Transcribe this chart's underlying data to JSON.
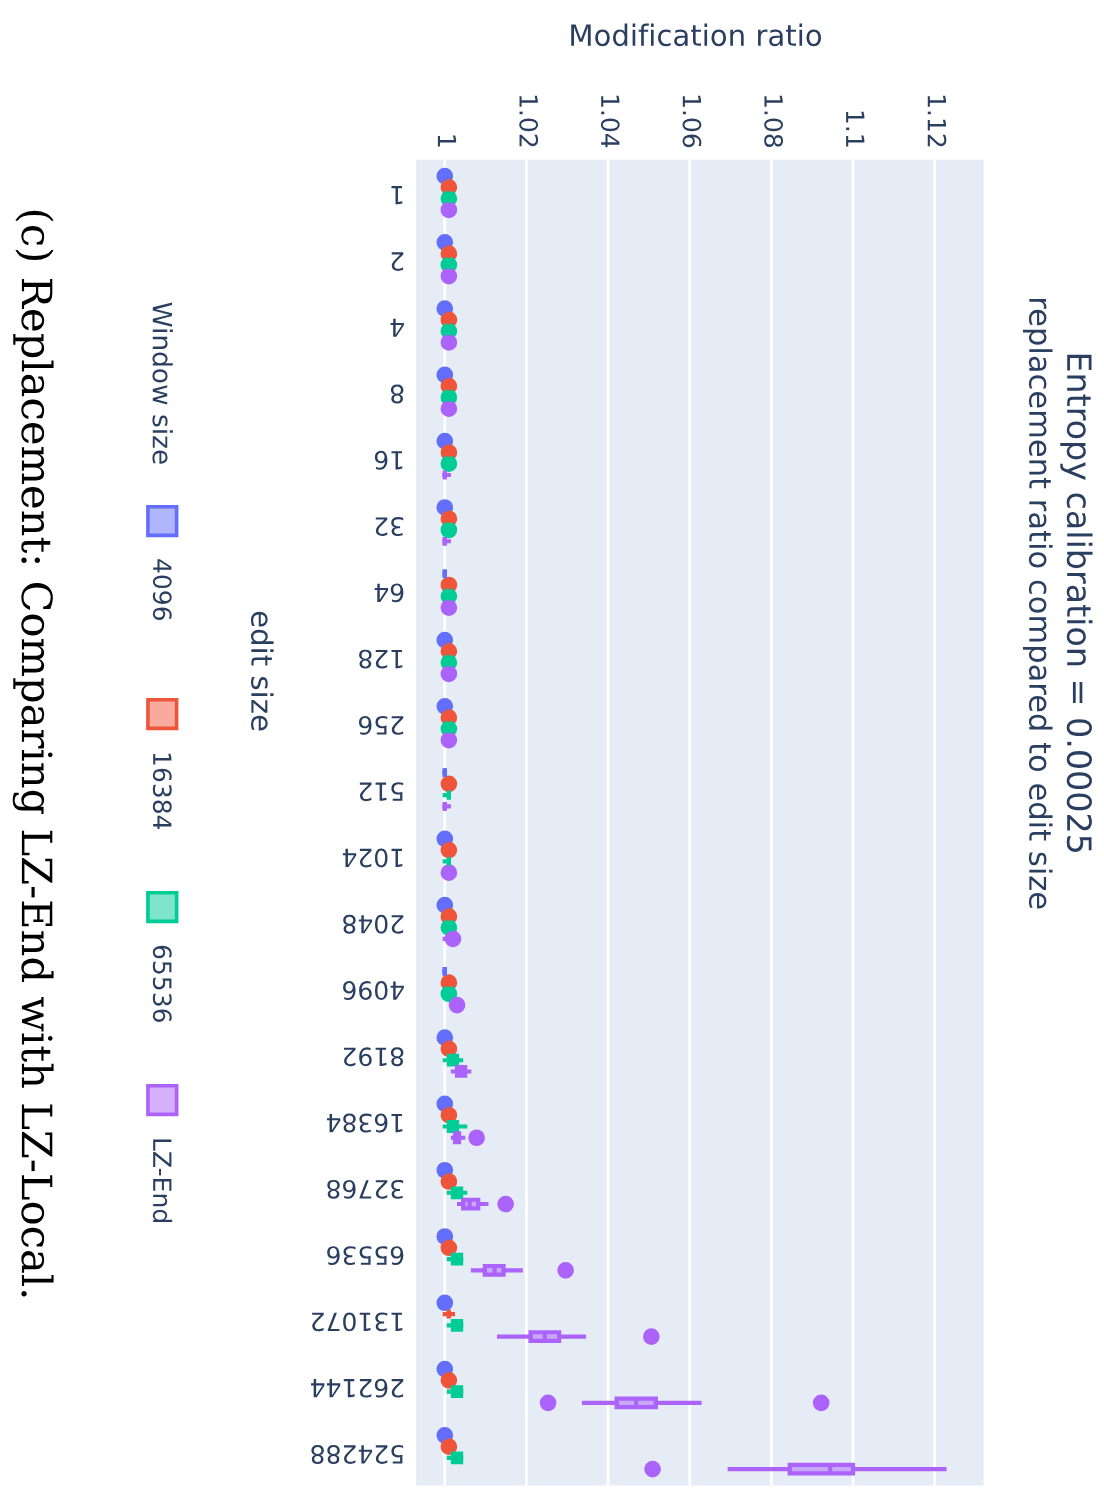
{
  "chart_data": {
    "type": "box",
    "orientation": "horizontal",
    "title": "Entropy calibration = 0.00025",
    "subtitle": "replacement ratio compared to edit size",
    "ylabel": "edit size",
    "xlabel": "Modification ratio",
    "legend_title": "Window size",
    "annotations": [
      "(c) Replacement: Comparing LZ-End with LZ-Local."
    ],
    "categories": [
      "1",
      "2",
      "4",
      "8",
      "16",
      "32",
      "64",
      "128",
      "256",
      "512",
      "1024",
      "2048",
      "4096",
      "8192",
      "16384",
      "32768",
      "65536",
      "131072",
      "262144",
      "524288"
    ],
    "xlim": [
      0.993,
      1.132
    ],
    "xticks": [
      1,
      1.02,
      1.04,
      1.06,
      1.08,
      1.1,
      1.12
    ],
    "grid": "x",
    "legend": "left",
    "series": [
      {
        "name": "4096",
        "color": "#636efa",
        "boxes": [
          {
            "low": 1,
            "q1": 1,
            "median": 1,
            "q3": 1,
            "high": 1,
            "outliers": [
              1
            ]
          },
          {
            "low": 1,
            "q1": 1,
            "median": 1,
            "q3": 1,
            "high": 1,
            "outliers": [
              1
            ]
          },
          {
            "low": 1,
            "q1": 1,
            "median": 1,
            "q3": 1,
            "high": 1,
            "outliers": [
              1
            ]
          },
          {
            "low": 1,
            "q1": 1,
            "median": 1,
            "q3": 1,
            "high": 1,
            "outliers": [
              1
            ]
          },
          {
            "low": 1,
            "q1": 1,
            "median": 1,
            "q3": 1,
            "high": 1,
            "outliers": [
              1
            ]
          },
          {
            "low": 1,
            "q1": 1,
            "median": 1,
            "q3": 1,
            "high": 1,
            "outliers": [
              1
            ]
          },
          {
            "low": 1,
            "q1": 1,
            "median": 1,
            "q3": 1,
            "high": 1
          },
          {
            "low": 1,
            "q1": 1,
            "median": 1,
            "q3": 1,
            "high": 1,
            "outliers": [
              1
            ]
          },
          {
            "low": 1,
            "q1": 1,
            "median": 1,
            "q3": 1,
            "high": 1,
            "outliers": [
              1
            ]
          },
          {
            "low": 1,
            "q1": 1,
            "median": 1,
            "q3": 1,
            "high": 1
          },
          {
            "low": 1,
            "q1": 1,
            "median": 1,
            "q3": 1,
            "high": 1,
            "outliers": [
              1
            ]
          },
          {
            "low": 1,
            "q1": 1,
            "median": 1,
            "q3": 1,
            "high": 1,
            "outliers": [
              1
            ]
          },
          {
            "low": 1,
            "q1": 1,
            "median": 1,
            "q3": 1,
            "high": 1
          },
          {
            "low": 1,
            "q1": 1,
            "median": 1,
            "q3": 1,
            "high": 1,
            "outliers": [
              1
            ]
          },
          {
            "low": 1,
            "q1": 1,
            "median": 1,
            "q3": 1,
            "high": 1,
            "outliers": [
              1
            ]
          },
          {
            "low": 1,
            "q1": 1,
            "median": 1,
            "q3": 1,
            "high": 1,
            "outliers": [
              1
            ]
          },
          {
            "low": 1,
            "q1": 1,
            "median": 1,
            "q3": 1,
            "high": 1,
            "outliers": [
              1
            ]
          },
          {
            "low": 1,
            "q1": 1,
            "median": 1,
            "q3": 1,
            "high": 1,
            "outliers": [
              1
            ]
          },
          {
            "low": 1,
            "q1": 1,
            "median": 1,
            "q3": 1,
            "high": 1,
            "outliers": [
              1
            ]
          },
          {
            "low": 1,
            "q1": 1,
            "median": 1,
            "q3": 1,
            "high": 1,
            "outliers": [
              1
            ]
          }
        ]
      },
      {
        "name": "16384",
        "color": "#ef553b",
        "boxes": [
          {
            "low": 1,
            "q1": 1.001,
            "median": 1.001,
            "q3": 1.001,
            "high": 1.001,
            "outliers": [
              1.001
            ]
          },
          {
            "low": 1,
            "q1": 1.001,
            "median": 1.001,
            "q3": 1.001,
            "high": 1.001,
            "outliers": [
              1.001
            ]
          },
          {
            "low": 1,
            "q1": 1.001,
            "median": 1.001,
            "q3": 1.001,
            "high": 1.001,
            "outliers": [
              1.001
            ]
          },
          {
            "low": 1,
            "q1": 1.001,
            "median": 1.001,
            "q3": 1.001,
            "high": 1.001,
            "outliers": [
              1.001
            ]
          },
          {
            "low": 1,
            "q1": 1.001,
            "median": 1.001,
            "q3": 1.001,
            "high": 1.001,
            "outliers": [
              1.001
            ]
          },
          {
            "low": 1,
            "q1": 1.001,
            "median": 1.001,
            "q3": 1.001,
            "high": 1.001,
            "outliers": [
              1.001
            ]
          },
          {
            "low": 1,
            "q1": 1.001,
            "median": 1.001,
            "q3": 1.001,
            "high": 1.001,
            "outliers": [
              1.001
            ]
          },
          {
            "low": 1,
            "q1": 1.001,
            "median": 1.001,
            "q3": 1.001,
            "high": 1.001,
            "outliers": [
              1.001
            ]
          },
          {
            "low": 1,
            "q1": 1.001,
            "median": 1.001,
            "q3": 1.001,
            "high": 1.001,
            "outliers": [
              1.001
            ]
          },
          {
            "low": 1,
            "q1": 1.001,
            "median": 1.001,
            "q3": 1.001,
            "high": 1.001,
            "outliers": [
              1.001
            ]
          },
          {
            "low": 1,
            "q1": 1.001,
            "median": 1.001,
            "q3": 1.001,
            "high": 1.001,
            "outliers": [
              1.001
            ]
          },
          {
            "low": 1,
            "q1": 1.001,
            "median": 1.001,
            "q3": 1.001,
            "high": 1.001,
            "outliers": [
              1.001
            ]
          },
          {
            "low": 1,
            "q1": 1.001,
            "median": 1.001,
            "q3": 1.001,
            "high": 1.002,
            "outliers": [
              1.001
            ]
          },
          {
            "low": 1,
            "q1": 1.001,
            "median": 1.001,
            "q3": 1.001,
            "high": 1.002,
            "outliers": [
              1.001
            ]
          },
          {
            "low": 1,
            "q1": 1.001,
            "median": 1.001,
            "q3": 1.001,
            "high": 1.002,
            "outliers": [
              1.001
            ]
          },
          {
            "low": 1,
            "q1": 1.001,
            "median": 1.001,
            "q3": 1.001,
            "high": 1.002,
            "outliers": [
              1.001
            ]
          },
          {
            "low": 1,
            "q1": 1.001,
            "median": 1.001,
            "q3": 1.001,
            "high": 1.002,
            "outliers": [
              1.001
            ]
          },
          {
            "low": 1,
            "q1": 1.001,
            "median": 1.001,
            "q3": 1.001,
            "high": 1.002
          },
          {
            "low": 1,
            "q1": 1.001,
            "median": 1.001,
            "q3": 1.001,
            "high": 1.002,
            "outliers": [
              1.001
            ]
          },
          {
            "low": 1,
            "q1": 1.001,
            "median": 1.001,
            "q3": 1.001,
            "high": 1.002,
            "outliers": [
              1.001
            ]
          }
        ]
      },
      {
        "name": "65536",
        "color": "#00cc96",
        "boxes": [
          {
            "low": 1,
            "q1": 1.001,
            "median": 1.001,
            "q3": 1.001,
            "high": 1.001,
            "outliers": [
              1.001
            ]
          },
          {
            "low": 1,
            "q1": 1.001,
            "median": 1.001,
            "q3": 1.001,
            "high": 1.001,
            "outliers": [
              1.001
            ]
          },
          {
            "low": 1,
            "q1": 1.001,
            "median": 1.001,
            "q3": 1.001,
            "high": 1.001,
            "outliers": [
              1.001
            ]
          },
          {
            "low": 1,
            "q1": 1.001,
            "median": 1.001,
            "q3": 1.001,
            "high": 1.001,
            "outliers": [
              1.001
            ]
          },
          {
            "low": 1,
            "q1": 1.001,
            "median": 1.001,
            "q3": 1.001,
            "high": 1.001,
            "outliers": [
              1.001
            ]
          },
          {
            "low": 1,
            "q1": 1.001,
            "median": 1.001,
            "q3": 1.001,
            "high": 1.001,
            "outliers": [
              1.001
            ]
          },
          {
            "low": 1,
            "q1": 1.001,
            "median": 1.001,
            "q3": 1.001,
            "high": 1.001,
            "outliers": [
              1.001
            ]
          },
          {
            "low": 1,
            "q1": 1.001,
            "median": 1.001,
            "q3": 1.001,
            "high": 1.001,
            "outliers": [
              1.001
            ]
          },
          {
            "low": 1,
            "q1": 1.001,
            "median": 1.001,
            "q3": 1.001,
            "high": 1.001,
            "outliers": [
              1.001
            ]
          },
          {
            "low": 1,
            "q1": 1.001,
            "median": 1.001,
            "q3": 1.001,
            "high": 1.001
          },
          {
            "low": 1,
            "q1": 1.001,
            "median": 1.001,
            "q3": 1.001,
            "high": 1.001
          },
          {
            "low": 1,
            "q1": 1.001,
            "median": 1.001,
            "q3": 1.001,
            "high": 1.001,
            "outliers": [
              1.001
            ]
          },
          {
            "low": 1,
            "q1": 1.001,
            "median": 1.001,
            "q3": 1.002,
            "high": 1.002,
            "outliers": [
              1.001
            ]
          },
          {
            "low": 1,
            "q1": 1.001,
            "median": 1.002,
            "q3": 1.003,
            "high": 1.004
          },
          {
            "low": 1,
            "q1": 1.001,
            "median": 1.002,
            "q3": 1.003,
            "high": 1.005
          },
          {
            "low": 1.001,
            "q1": 1.002,
            "median": 1.003,
            "q3": 1.004,
            "high": 1.005
          },
          {
            "low": 1.001,
            "q1": 1.002,
            "median": 1.003,
            "q3": 1.004,
            "high": 1.004
          },
          {
            "low": 1.001,
            "q1": 1.002,
            "median": 1.003,
            "q3": 1.004,
            "high": 1.004
          },
          {
            "low": 1.001,
            "q1": 1.002,
            "median": 1.003,
            "q3": 1.004,
            "high": 1.004
          },
          {
            "low": 1.001,
            "q1": 1.002,
            "median": 1.003,
            "q3": 1.004,
            "high": 1.004
          }
        ]
      },
      {
        "name": "LZ-End",
        "color": "#ab63fa",
        "boxes": [
          {
            "low": 1,
            "q1": 1.001,
            "median": 1.001,
            "q3": 1.001,
            "high": 1.001,
            "outliers": [
              1.001
            ]
          },
          {
            "low": 1,
            "q1": 1.001,
            "median": 1.001,
            "q3": 1.001,
            "high": 1.001,
            "outliers": [
              1.001
            ]
          },
          {
            "low": 1,
            "q1": 1.001,
            "median": 1.001,
            "q3": 1.001,
            "high": 1.001,
            "outliers": [
              1.001
            ]
          },
          {
            "low": 1,
            "q1": 1.001,
            "median": 1.001,
            "q3": 1.001,
            "high": 1.001,
            "outliers": [
              1.001
            ]
          },
          {
            "low": 1,
            "q1": 1,
            "median": 1,
            "q3": 1,
            "high": 1.001
          },
          {
            "low": 1,
            "q1": 1,
            "median": 1,
            "q3": 1,
            "high": 1.001
          },
          {
            "low": 1,
            "q1": 1.001,
            "median": 1.001,
            "q3": 1.001,
            "high": 1.001,
            "outliers": [
              1.001
            ]
          },
          {
            "low": 1,
            "q1": 1.001,
            "median": 1.001,
            "q3": 1.001,
            "high": 1.001,
            "outliers": [
              1.001
            ]
          },
          {
            "low": 1,
            "q1": 1.001,
            "median": 1.001,
            "q3": 1.001,
            "high": 1.001,
            "outliers": [
              1.001
            ]
          },
          {
            "low": 1,
            "q1": 1,
            "median": 1,
            "q3": 1,
            "high": 1.001
          },
          {
            "low": 1,
            "q1": 1.001,
            "median": 1.001,
            "q3": 1.001,
            "high": 1.001,
            "outliers": [
              1.001
            ]
          },
          {
            "low": 1,
            "q1": 1.002,
            "median": 1.002,
            "q3": 1.002,
            "high": 1.002,
            "outliers": [
              1.002
            ]
          },
          {
            "low": 1.002,
            "q1": 1.003,
            "median": 1.003,
            "q3": 1.003,
            "high": 1.004,
            "outliers": [
              1.003
            ]
          },
          {
            "low": 1.002,
            "q1": 1.003,
            "median": 1.004,
            "q3": 1.005,
            "high": 1.006
          },
          {
            "low": 1.002,
            "q1": 1.0025,
            "median": 1.003,
            "q3": 1.0035,
            "high": 1.0045,
            "outliers": [
              1.0078
            ]
          },
          {
            "low": 1.0035,
            "q1": 1.0045,
            "median": 1.0061,
            "q3": 1.0082,
            "high": 1.0102,
            "outliers": [
              1.0149
            ]
          },
          {
            "low": 1.0069,
            "q1": 1.0098,
            "median": 1.0122,
            "q3": 1.0144,
            "high": 1.0186,
            "outliers": [
              1.0296
            ]
          },
          {
            "low": 1.0133,
            "q1": 1.021,
            "median": 1.0245,
            "q3": 1.028,
            "high": 1.0341,
            "outliers": [
              1.0506
            ]
          },
          {
            "low": 1.0341,
            "q1": 1.0421,
            "median": 1.0469,
            "q3": 1.0517,
            "high": 1.0624,
            "outliers": [
              1.0253,
              1.0922
            ]
          },
          {
            "low": 1.0698,
            "q1": 1.0845,
            "median": 1.0944,
            "q3": 1.1,
            "high": 1.1224,
            "outliers": [
              1.0509
            ]
          }
        ]
      }
    ]
  }
}
